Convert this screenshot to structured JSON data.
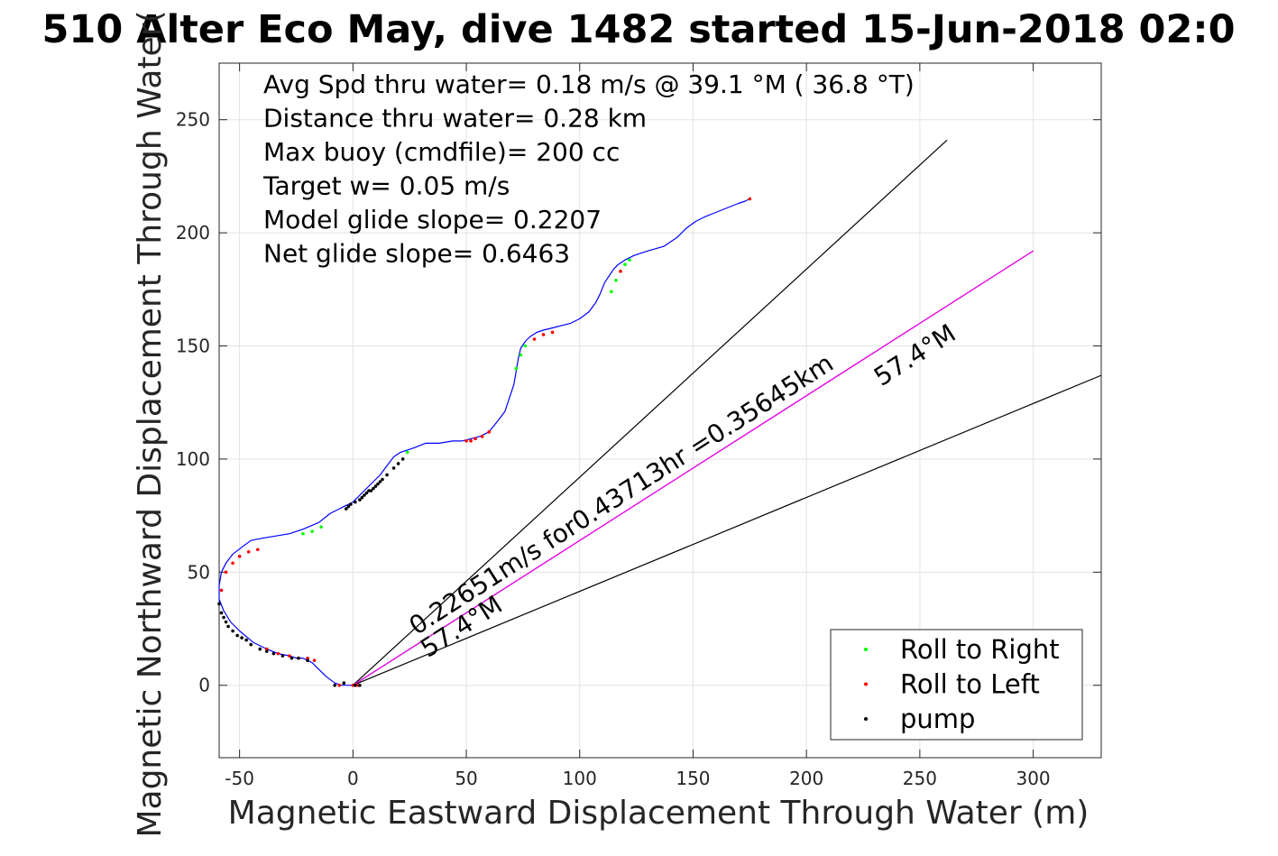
{
  "chart_data": {
    "type": "line",
    "title": "510 Alter Eco May, dive 1482 started 15-Jun-2018 02:0",
    "xlabel": "Magnetic Eastward Displacement Through Water (m)",
    "ylabel": "Magnetic Northward Displacement Through Water(",
    "xlim": [
      -59,
      330
    ],
    "ylim": [
      -32,
      275
    ],
    "xticks": [
      -50,
      0,
      50,
      100,
      150,
      200,
      250,
      300
    ],
    "yticks": [
      0,
      50,
      100,
      150,
      200,
      250
    ],
    "grid": true,
    "legend_position": "bottom-right",
    "legend": [
      {
        "label": "Roll to Right",
        "color": "#00ff00"
      },
      {
        "label": "Roll to Left",
        "color": "#ff0000"
      },
      {
        "label": "pump",
        "color": "#000000"
      }
    ],
    "info_lines": [
      "Avg Spd thru water=  0.18 m/s @  39.1 °M ( 36.8 °T)",
      "Distance thru water=  0.28 km",
      "Max buoy (cmdfile)= 200 cc",
      "Target w= 0.05 m/s",
      "Model glide slope= 0.2207",
      "Net glide slope= 0.6463"
    ],
    "annotations": [
      {
        "text": "0.22651m/s for0.43713hr =0.35645km",
        "x": 28,
        "y": 22,
        "angle_deg": 32.6
      },
      {
        "text": "57.4°M",
        "x": 33,
        "y": 12,
        "angle_deg": 32.6
      },
      {
        "text": "57.4°M",
        "x": 233,
        "y": 132,
        "angle_deg": 32.6
      }
    ],
    "series": [
      {
        "name": "track",
        "color": "#0000ff",
        "x": [
          0,
          -2,
          -5,
          -8,
          -12,
          -18,
          -22,
          -25,
          -28,
          -33,
          -38,
          -44,
          -50,
          -54,
          -57,
          -59,
          -59,
          -58,
          -56,
          -53,
          -49,
          -45,
          -40,
          -34,
          -28,
          -22,
          -15,
          -10,
          -6,
          -4,
          -2,
          0,
          2,
          4,
          6,
          8,
          10,
          12,
          15,
          18,
          21,
          24,
          27,
          32,
          38,
          44,
          48,
          52,
          56,
          60,
          64,
          67,
          69,
          71,
          72,
          73,
          74,
          76,
          78,
          81,
          84,
          88,
          92,
          96,
          100,
          104,
          107,
          109,
          111,
          113,
          115,
          117,
          120,
          124,
          130,
          137,
          143,
          147,
          151,
          155,
          160,
          165,
          170,
          173,
          175
        ],
        "y": [
          0,
          0,
          0,
          1,
          4,
          10,
          12,
          12,
          13,
          14,
          16,
          19,
          24,
          28,
          33,
          38,
          44,
          50,
          54,
          58,
          61,
          64,
          65,
          66,
          67,
          69,
          72,
          76,
          78,
          79,
          80,
          81,
          83,
          85,
          87,
          89,
          91,
          93,
          97,
          101,
          103,
          104,
          105,
          107,
          107,
          108,
          108,
          109,
          110,
          112,
          117,
          121,
          127,
          133,
          139,
          145,
          149,
          152,
          154,
          156,
          157,
          158,
          159,
          160,
          162,
          165,
          169,
          173,
          178,
          181,
          184,
          186,
          188,
          190,
          192,
          194,
          198,
          202,
          205,
          207,
          209,
          211,
          213,
          214,
          215
        ]
      },
      {
        "name": "glide path",
        "color": "#ff00ff",
        "x": [
          0,
          300
        ],
        "y": [
          0,
          192
        ]
      }
    ],
    "reference_lines": [
      {
        "color": "#000000",
        "x": [
          0,
          262
        ],
        "y": [
          0,
          241
        ]
      },
      {
        "color": "#000000",
        "x": [
          0,
          300
        ],
        "y": [
          0,
          192
        ]
      },
      {
        "color": "#000000",
        "x": [
          0,
          330
        ],
        "y": [
          0,
          137
        ]
      }
    ],
    "markers": {
      "roll_right": {
        "color": "#00ff00",
        "x": [
          -22,
          -18,
          -14,
          24,
          72,
          74,
          76,
          114,
          116,
          118,
          120,
          122
        ],
        "y": [
          67,
          68,
          70,
          103,
          140,
          146,
          150,
          174,
          179,
          183,
          186,
          188
        ]
      },
      "roll_left": {
        "color": "#ff0000",
        "x": [
          -58,
          -56,
          -53,
          -50,
          -46,
          -42,
          -38,
          -33,
          -28,
          -24,
          -20,
          -17,
          -6,
          0,
          2,
          50,
          52,
          54,
          57,
          60,
          80,
          84,
          88,
          118,
          175
        ],
        "y": [
          42,
          50,
          54,
          57,
          59,
          60,
          16,
          14,
          13,
          12,
          12,
          11,
          0,
          0,
          0,
          108,
          108,
          109,
          110,
          112,
          153,
          155,
          156,
          183,
          215
        ]
      },
      "pump": {
        "color": "#000000",
        "x": [
          -59,
          -58,
          -57,
          -56,
          -55,
          -53,
          -51,
          -49,
          -47,
          -45,
          -41,
          -38,
          -35,
          -31,
          -27,
          -24,
          -20,
          -8,
          -4,
          -3,
          -2,
          -1,
          1,
          3,
          4,
          5,
          6,
          7,
          8,
          9,
          10,
          11,
          12,
          13,
          15,
          18,
          20,
          22,
          1,
          3
        ],
        "y": [
          36,
          32,
          30,
          28,
          26,
          24,
          22,
          21,
          20,
          18,
          16,
          15,
          14,
          13,
          12,
          12,
          11,
          0,
          1,
          78,
          79,
          80,
          81,
          82,
          83,
          84,
          85,
          86,
          86,
          87,
          88,
          89,
          90,
          91,
          93,
          96,
          98,
          100,
          0,
          0
        ]
      }
    }
  }
}
